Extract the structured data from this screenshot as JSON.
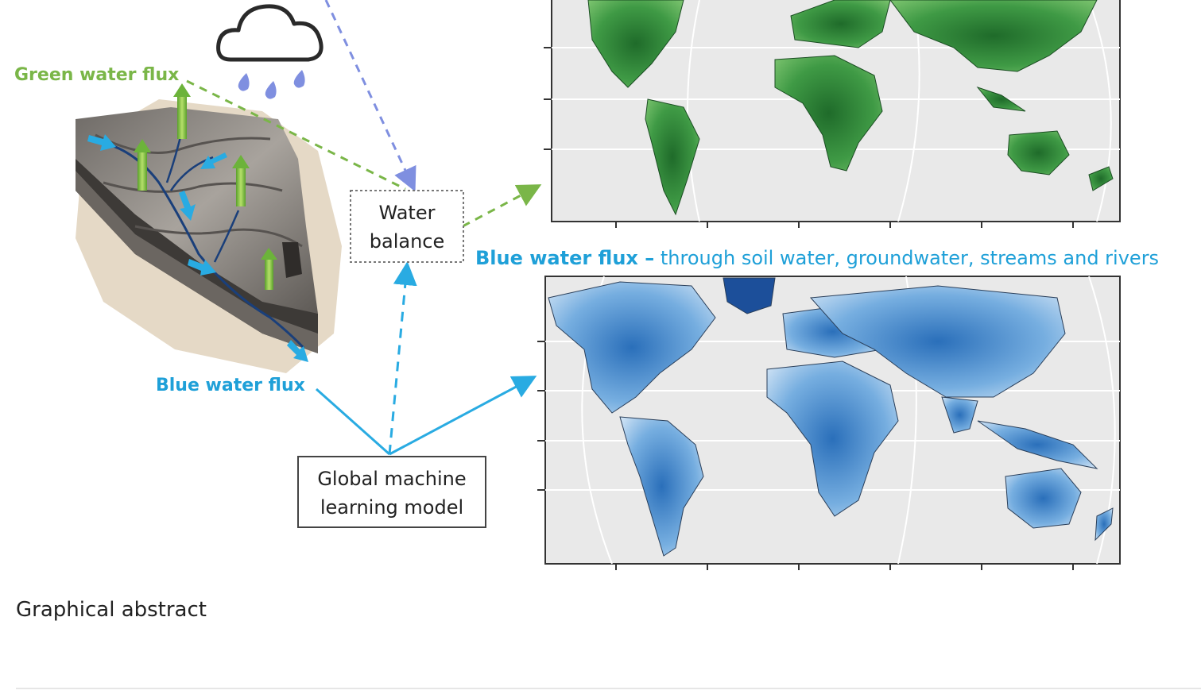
{
  "diagram": {
    "green_flux_label": "Green water flux",
    "blue_flux_label": "Blue water flux",
    "water_balance_line1": "Water",
    "water_balance_line2": "balance",
    "model_line1": "Global machine",
    "model_line2": "learning model",
    "blue_map_title_bold": "Blue water flux –",
    "blue_map_title_rest": " through soil water, groundwater, streams and rivers"
  },
  "caption": "Graphical abstract",
  "colors": {
    "green_text": "#7ab648",
    "blue_text": "#1fa0d8",
    "green_arrow": "#8cc63f",
    "blue_arrow": "#29abe2",
    "dashed_blue": "#7f8fe0",
    "rain_drop": "#7f8fe0",
    "map_background": "#e9e9e9",
    "green_land": "#2e8b3a",
    "blue_land": "#4a8fd0"
  },
  "icons": [
    "cloud-icon",
    "rain-drop-icon",
    "catchment-block-icon",
    "world-map-green",
    "world-map-blue"
  ]
}
